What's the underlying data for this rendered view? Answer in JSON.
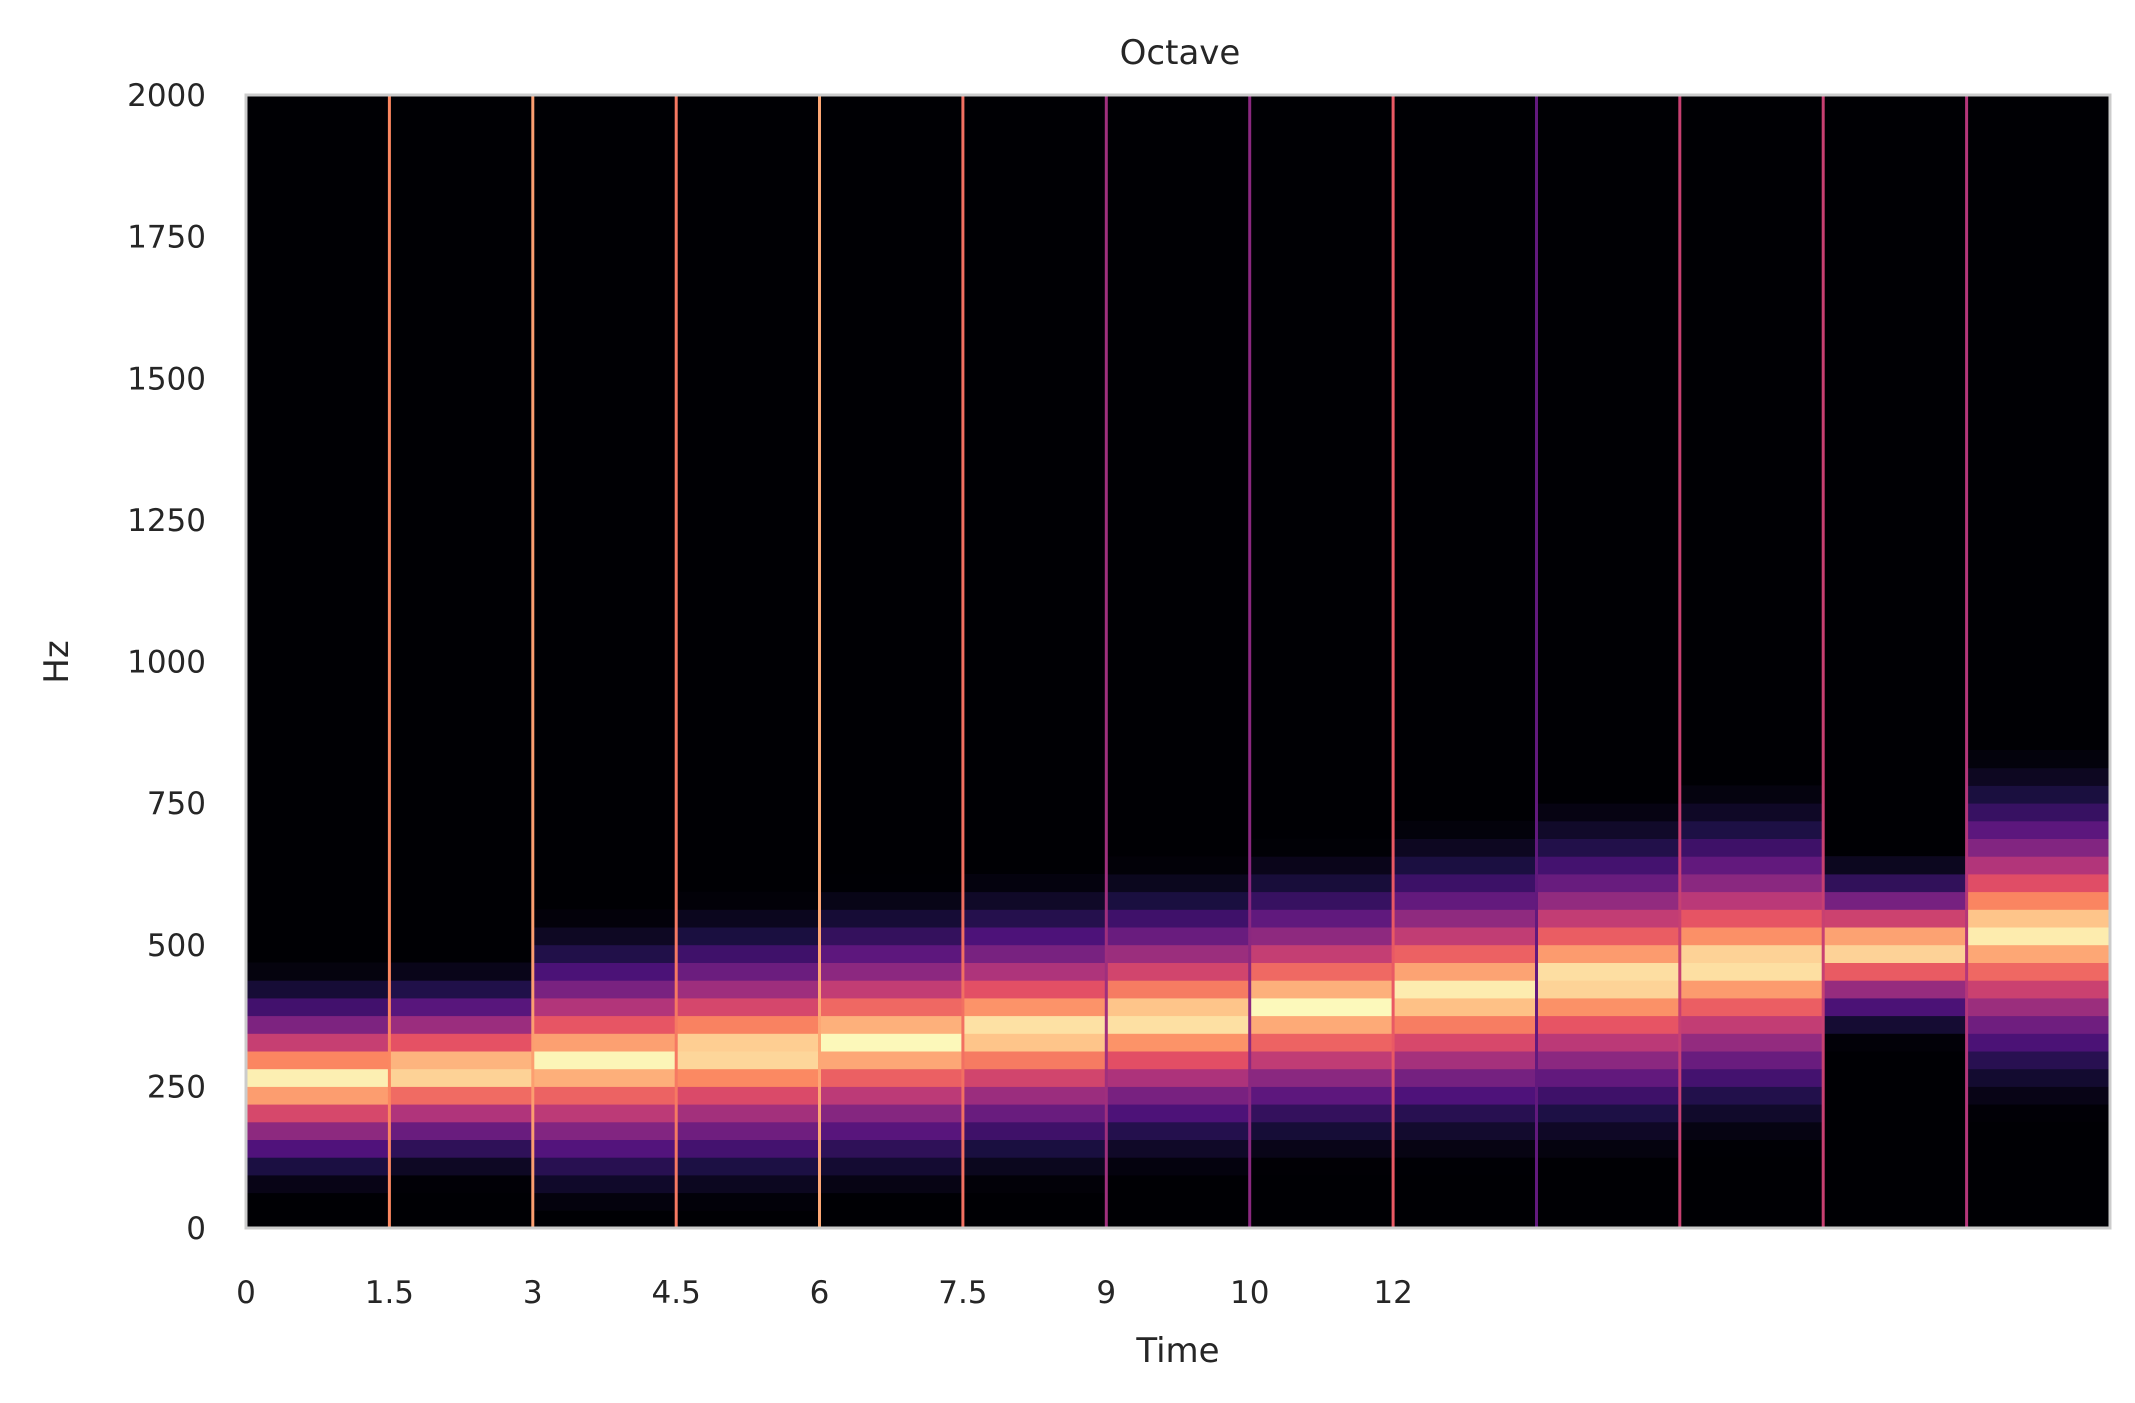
{
  "chart_data": {
    "type": "heatmap",
    "title": "Octave",
    "xlabel": "Time",
    "ylabel": "Hz",
    "x_tick_labels": [
      "0",
      "1.5",
      "3",
      "4.5",
      "6",
      "7.5",
      "9",
      "10",
      "12"
    ],
    "y_tick_labels": [
      "0",
      "250",
      "500",
      "750",
      "1000",
      "1250",
      "1500",
      "1750",
      "2000"
    ],
    "y_ticks": [
      0,
      250,
      500,
      750,
      1000,
      1250,
      1500,
      1750,
      2000
    ],
    "ylim": [
      0,
      2000
    ],
    "colormap": "magma",
    "grid": false,
    "segments": [
      {
        "center_hz": 262,
        "spread_hz": 210,
        "edge_intensity": 0.8
      },
      {
        "center_hz": 277,
        "spread_hz": 205,
        "edge_intensity": 0.75
      },
      {
        "center_hz": 294,
        "spread_hz": 270,
        "edge_intensity": 0.8
      },
      {
        "center_hz": 311,
        "spread_hz": 280,
        "edge_intensity": 0.72
      },
      {
        "center_hz": 330,
        "spread_hz": 285,
        "edge_intensity": 0.82
      },
      {
        "center_hz": 349,
        "spread_hz": 285,
        "edge_intensity": 0.7
      },
      {
        "center_hz": 370,
        "spread_hz": 285,
        "edge_intensity": 0.45
      },
      {
        "center_hz": 392,
        "spread_hz": 290,
        "edge_intensity": 0.4
      },
      {
        "center_hz": 415,
        "spread_hz": 310,
        "edge_intensity": 0.65
      },
      {
        "center_hz": 440,
        "spread_hz": 330,
        "edge_intensity": 0.3
      },
      {
        "center_hz": 466,
        "spread_hz": 330,
        "edge_intensity": 0.55
      },
      {
        "center_hz": 494,
        "spread_hz": 175,
        "edge_intensity": 0.55
      },
      {
        "center_hz": 523,
        "spread_hz": 330,
        "edge_intensity": 0.5
      }
    ]
  }
}
